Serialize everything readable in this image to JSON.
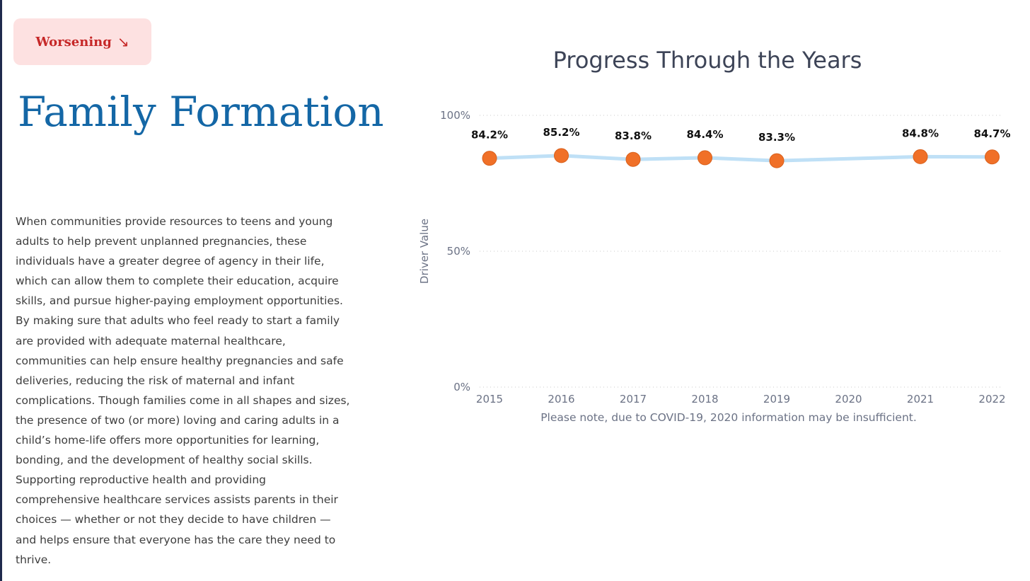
{
  "badge": {
    "label": "Worsening",
    "arrow": "↘",
    "color": "#c62828",
    "background": "#fde1e1"
  },
  "page_title": "Family Formation",
  "description": "When communities provide resources to teens and young adults to help prevent unplanned pregnancies, these individuals have a greater degree of agency in their life, which can allow them to complete their education, acquire skills, and pursue higher-paying employment opportunities. By making sure that adults who feel ready to start a family are provided with adequate maternal healthcare, communities can help ensure healthy pregnancies and safe deliveries, reducing the risk of maternal and infant complications. Though families come in all shapes and sizes, the presence of two (or more) loving and caring adults in a child’s home-life offers more opportunities for learning, bonding, and the development of healthy social skills. Supporting reproductive health and providing comprehensive healthcare services assists parents in their choices — whether or not they decide to have children — and helps ensure that everyone has the care they need to thrive.",
  "colors": {
    "title": "#1467a6",
    "line": "#bfe0f6",
    "marker": "#f07028",
    "marker_edge": "#d8601c",
    "grid": "#c9c9c9",
    "axis_text": "#6b7285"
  },
  "chart_data": {
    "type": "line",
    "title": "Progress Through the Years",
    "xlabel": "",
    "ylabel": "Driver Value",
    "categories": [
      "2015",
      "2016",
      "2017",
      "2018",
      "2019",
      "2020",
      "2021",
      "2022"
    ],
    "values": [
      84.2,
      85.2,
      83.8,
      84.4,
      83.3,
      null,
      84.8,
      84.7
    ],
    "data_labels": [
      "84.2%",
      "85.2%",
      "83.8%",
      "84.4%",
      "83.3%",
      null,
      "84.8%",
      "84.7%"
    ],
    "yticks": [
      0,
      50,
      100
    ],
    "ytick_labels": [
      "0%",
      "50%",
      "100%"
    ],
    "ylim": [
      0,
      100
    ],
    "grid": "dotted horizontal",
    "note": "Please note, due to COVID-19, 2020 information may be insufficient."
  }
}
